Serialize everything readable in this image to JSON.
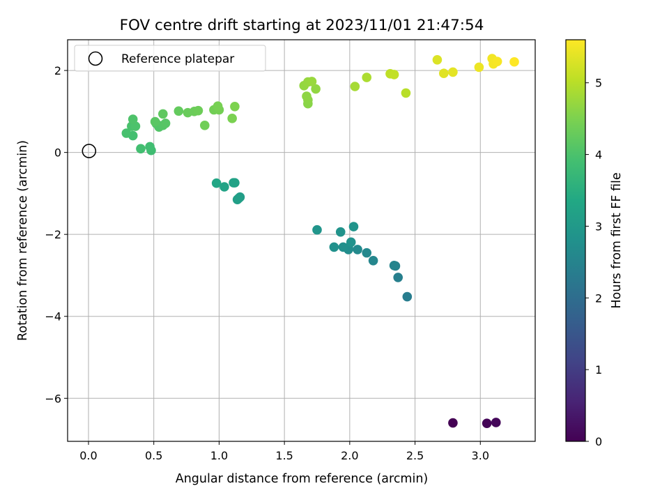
{
  "chart_data": {
    "type": "scatter",
    "title": "FOV centre drift starting at 2023/11/01 21:47:54",
    "xlabel": "Angular distance from reference (arcmin)",
    "ylabel": "Rotation from reference (arcmin)",
    "xlim": [
      -0.16,
      3.42
    ],
    "ylim": [
      -7.05,
      2.75
    ],
    "xticks": [
      0.0,
      0.5,
      1.0,
      1.5,
      2.0,
      2.5,
      3.0
    ],
    "xtick_labels": [
      "0.0",
      "0.5",
      "1.0",
      "1.5",
      "2.0",
      "2.5",
      "3.0"
    ],
    "yticks": [
      -6,
      -4,
      -2,
      0,
      2
    ],
    "ytick_labels": [
      "−6",
      "−4",
      "−2",
      "0",
      "2"
    ],
    "grid": true,
    "legend": {
      "position": "top-left",
      "entries": [
        "Reference platepar"
      ]
    },
    "colorbar": {
      "label": "Hours from first FF file",
      "range": [
        0,
        5.6
      ],
      "ticks": [
        0,
        1,
        2,
        3,
        4,
        5
      ],
      "tick_labels": [
        "0",
        "1",
        "2",
        "3",
        "4",
        "5"
      ],
      "colormap": "viridis"
    },
    "reference_point": {
      "x": 0.0,
      "y": 0.0
    },
    "points": [
      {
        "x": 2.79,
        "y": -6.6,
        "h": 0.0
      },
      {
        "x": 3.05,
        "y": -6.61,
        "h": 0.05
      },
      {
        "x": 3.12,
        "y": -6.59,
        "h": 0.1
      },
      {
        "x": 2.44,
        "y": -3.52,
        "h": 2.35
      },
      {
        "x": 2.37,
        "y": -3.05,
        "h": 2.4
      },
      {
        "x": 2.35,
        "y": -2.77,
        "h": 2.45
      },
      {
        "x": 2.34,
        "y": -2.76,
        "h": 2.5
      },
      {
        "x": 2.18,
        "y": -2.64,
        "h": 2.55
      },
      {
        "x": 2.13,
        "y": -2.45,
        "h": 2.6
      },
      {
        "x": 2.06,
        "y": -2.37,
        "h": 2.65
      },
      {
        "x": 1.99,
        "y": -2.37,
        "h": 2.7
      },
      {
        "x": 1.99,
        "y": -2.32,
        "h": 2.72
      },
      {
        "x": 1.95,
        "y": -2.31,
        "h": 2.75
      },
      {
        "x": 1.88,
        "y": -2.31,
        "h": 2.8
      },
      {
        "x": 2.01,
        "y": -2.19,
        "h": 2.82
      },
      {
        "x": 1.93,
        "y": -1.94,
        "h": 2.85
      },
      {
        "x": 2.03,
        "y": -1.81,
        "h": 2.88
      },
      {
        "x": 1.75,
        "y": -1.89,
        "h": 2.9
      },
      {
        "x": 1.16,
        "y": -1.09,
        "h": 3.1
      },
      {
        "x": 1.15,
        "y": -1.12,
        "h": 3.12
      },
      {
        "x": 1.14,
        "y": -1.15,
        "h": 3.15
      },
      {
        "x": 1.12,
        "y": -0.74,
        "h": 3.2
      },
      {
        "x": 1.11,
        "y": -0.74,
        "h": 3.22
      },
      {
        "x": 1.04,
        "y": -0.84,
        "h": 3.25
      },
      {
        "x": 0.98,
        "y": -0.75,
        "h": 3.3
      },
      {
        "x": 0.48,
        "y": 0.05,
        "h": 3.85
      },
      {
        "x": 0.47,
        "y": 0.14,
        "h": 3.87
      },
      {
        "x": 0.4,
        "y": 0.09,
        "h": 3.9
      },
      {
        "x": 0.34,
        "y": 0.41,
        "h": 3.92
      },
      {
        "x": 0.29,
        "y": 0.47,
        "h": 3.95
      },
      {
        "x": 0.33,
        "y": 0.64,
        "h": 3.97
      },
      {
        "x": 0.36,
        "y": 0.64,
        "h": 4.0
      },
      {
        "x": 0.34,
        "y": 0.81,
        "h": 4.02
      },
      {
        "x": 0.52,
        "y": 0.7,
        "h": 4.05
      },
      {
        "x": 0.54,
        "y": 0.62,
        "h": 4.07
      },
      {
        "x": 0.57,
        "y": 0.66,
        "h": 4.1
      },
      {
        "x": 0.59,
        "y": 0.71,
        "h": 4.12
      },
      {
        "x": 0.51,
        "y": 0.75,
        "h": 4.15
      },
      {
        "x": 0.57,
        "y": 0.94,
        "h": 4.2
      },
      {
        "x": 0.69,
        "y": 1.01,
        "h": 4.25
      },
      {
        "x": 0.76,
        "y": 0.97,
        "h": 4.3
      },
      {
        "x": 0.81,
        "y": 1.0,
        "h": 4.32
      },
      {
        "x": 0.84,
        "y": 1.02,
        "h": 4.35
      },
      {
        "x": 0.89,
        "y": 0.66,
        "h": 4.38
      },
      {
        "x": 0.96,
        "y": 1.04,
        "h": 4.4
      },
      {
        "x": 1.0,
        "y": 1.04,
        "h": 4.42
      },
      {
        "x": 0.99,
        "y": 1.13,
        "h": 4.45
      },
      {
        "x": 1.1,
        "y": 0.83,
        "h": 4.48
      },
      {
        "x": 1.12,
        "y": 1.12,
        "h": 4.5
      },
      {
        "x": 1.68,
        "y": 1.19,
        "h": 4.6
      },
      {
        "x": 1.68,
        "y": 1.28,
        "h": 4.62
      },
      {
        "x": 1.67,
        "y": 1.37,
        "h": 4.65
      },
      {
        "x": 1.74,
        "y": 1.55,
        "h": 4.68
      },
      {
        "x": 1.65,
        "y": 1.63,
        "h": 4.7
      },
      {
        "x": 1.68,
        "y": 1.72,
        "h": 4.72
      },
      {
        "x": 1.71,
        "y": 1.73,
        "h": 4.74
      },
      {
        "x": 2.04,
        "y": 1.61,
        "h": 4.85
      },
      {
        "x": 2.13,
        "y": 1.83,
        "h": 4.9
      },
      {
        "x": 2.43,
        "y": 1.45,
        "h": 5.0
      },
      {
        "x": 2.31,
        "y": 1.92,
        "h": 5.05
      },
      {
        "x": 2.34,
        "y": 1.9,
        "h": 5.08
      },
      {
        "x": 2.67,
        "y": 2.26,
        "h": 5.3
      },
      {
        "x": 2.72,
        "y": 1.93,
        "h": 5.35
      },
      {
        "x": 2.79,
        "y": 1.96,
        "h": 5.38
      },
      {
        "x": 2.99,
        "y": 2.08,
        "h": 5.45
      },
      {
        "x": 3.09,
        "y": 2.29,
        "h": 5.5
      },
      {
        "x": 3.1,
        "y": 2.16,
        "h": 5.52
      },
      {
        "x": 3.13,
        "y": 2.22,
        "h": 5.55
      },
      {
        "x": 3.26,
        "y": 2.21,
        "h": 5.6
      }
    ]
  }
}
